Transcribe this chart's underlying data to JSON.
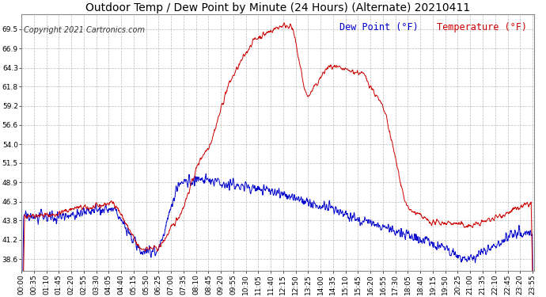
{
  "title": "Outdoor Temp / Dew Point by Minute (24 Hours) (Alternate) 20210411",
  "copyright": "Copyright 2021 Cartronics.com",
  "legend_dew": "Dew Point (°F)",
  "legend_temp": "Temperature (°F)",
  "dew_color": "#0000cc",
  "temp_color": "#cc0000",
  "bg_color": "#ffffff",
  "grid_color": "#aaaaaa",
  "yticks": [
    38.6,
    41.2,
    43.8,
    46.3,
    48.9,
    51.5,
    54.0,
    56.6,
    59.2,
    61.8,
    64.3,
    66.9,
    69.5
  ],
  "ymin": 37.0,
  "ymax": 71.5,
  "title_fontsize": 10,
  "tick_fontsize": 6.5,
  "legend_fontsize": 8.5,
  "copyright_fontsize": 7
}
